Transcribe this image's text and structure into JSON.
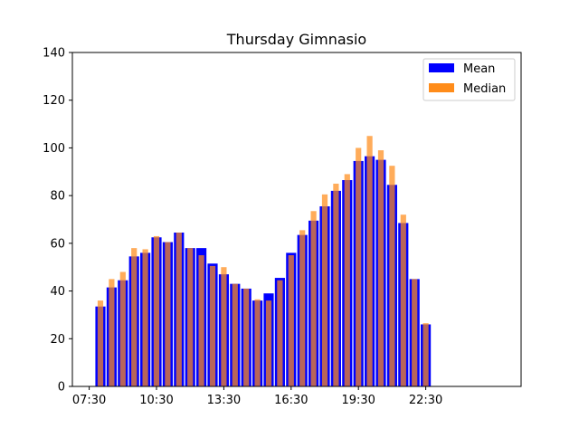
{
  "chart_data": {
    "type": "bar",
    "title": "Thursday Gimnasio",
    "xlabel": "",
    "ylabel": "",
    "ylim": [
      0,
      140
    ],
    "yticks": [
      0,
      20,
      40,
      60,
      80,
      100,
      120,
      140
    ],
    "xlim_half_hours": [
      5.5,
      45.5
    ],
    "xticks": [
      {
        "label": "07:30",
        "pos": 7
      },
      {
        "label": "10:30",
        "pos": 13
      },
      {
        "label": "13:30",
        "pos": 19
      },
      {
        "label": "16:30",
        "pos": 25
      },
      {
        "label": "19:30",
        "pos": 31
      },
      {
        "label": "22:30",
        "pos": 37
      }
    ],
    "categories": [
      "08:00",
      "08:30",
      "09:00",
      "09:30",
      "10:00",
      "10:30",
      "11:00",
      "11:30",
      "12:00",
      "12:30",
      "13:00",
      "13:30",
      "14:00",
      "14:30",
      "15:00",
      "15:30",
      "16:00",
      "16:30",
      "17:00",
      "17:30",
      "18:00",
      "18:30",
      "19:00",
      "19:30",
      "20:00",
      "20:30",
      "21:00",
      "21:30",
      "22:00",
      "22:30",
      "23:00"
    ],
    "series": [
      {
        "name": "Mean",
        "color": "#0000ff",
        "values": [
          33.5,
          41.5,
          44.5,
          54.5,
          56.0,
          62.5,
          60.5,
          64.5,
          58.0,
          58.0,
          51.5,
          47.0,
          43.0,
          41.0,
          36.0,
          39.0,
          45.5,
          56.0,
          63.5,
          69.5,
          75.5,
          82.0,
          86.5,
          94.5,
          96.5,
          95.0,
          84.5,
          68.5,
          45.0,
          26.0,
          0
        ]
      },
      {
        "name": "Median",
        "color": "#ff8c1a",
        "values": [
          36.0,
          45.0,
          48.0,
          58.0,
          57.5,
          63.0,
          60.5,
          64.5,
          58.0,
          55.0,
          50.5,
          50.0,
          43.0,
          41.0,
          36.5,
          36.0,
          44.5,
          55.0,
          65.5,
          73.5,
          80.5,
          85.0,
          89.0,
          100.0,
          105.0,
          99.0,
          92.5,
          72.0,
          45.0,
          26.5,
          0
        ]
      }
    ],
    "legend": {
      "position": "top-right",
      "entries": [
        "Mean",
        "Median"
      ]
    },
    "grid": false
  }
}
